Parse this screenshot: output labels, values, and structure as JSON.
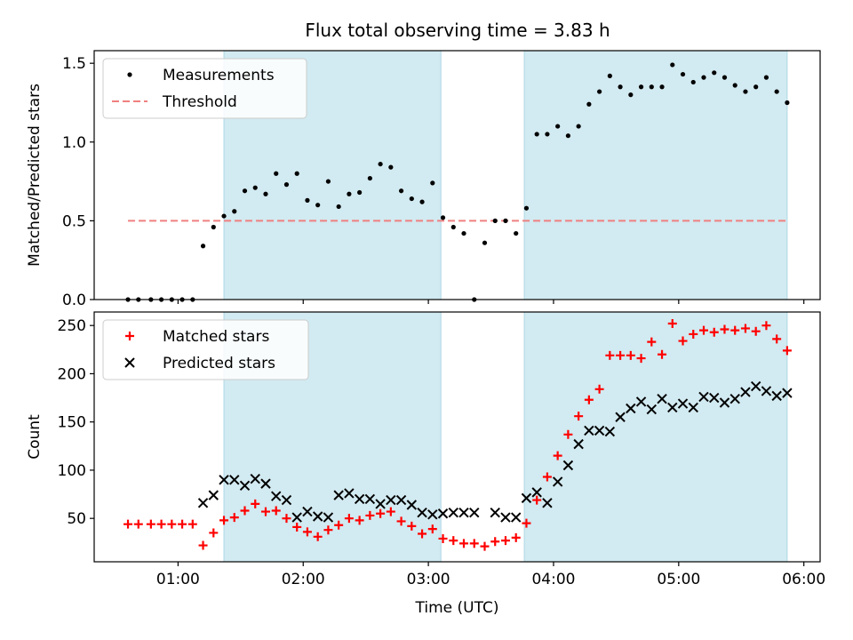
{
  "title": "Flux total observing time = 3.83 h",
  "colors": {
    "band": "#add8e6",
    "measurement": "#000000",
    "threshold": "#f08080",
    "matched": "#ff0000",
    "predicted": "#000000"
  },
  "chart_data": [
    {
      "type": "scatter",
      "panel": "top",
      "xlabel": "",
      "ylabel": "Matched/Predicted stars",
      "ylim": [
        0,
        1.58
      ],
      "xlim_hours": [
        0.33,
        6.13
      ],
      "yticks": [
        0.0,
        0.5,
        1.0,
        1.5
      ],
      "ytick_labels": [
        "0.0",
        "0.5",
        "1.0",
        "1.5"
      ],
      "legend_position": "top-left",
      "legend": [
        "Measurements",
        "Threshold"
      ],
      "threshold": {
        "value": 0.5,
        "x_range": [
          "00:36",
          "05:52"
        ]
      },
      "shaded_intervals": [
        [
          "01:22",
          "03:06"
        ],
        [
          "03:46",
          "05:52"
        ]
      ],
      "series": [
        {
          "name": "Measurements",
          "x": [
            "00:36",
            "00:41",
            "00:47",
            "00:52",
            "00:57",
            "01:02",
            "01:07",
            "01:12",
            "01:17",
            "01:22",
            "01:27",
            "01:32",
            "01:37",
            "01:42",
            "01:47",
            "01:52",
            "01:57",
            "02:02",
            "02:07",
            "02:12",
            "02:17",
            "02:22",
            "02:27",
            "02:32",
            "02:37",
            "02:42",
            "02:47",
            "02:52",
            "02:57",
            "03:02",
            "03:07",
            "03:12",
            "03:17",
            "03:22",
            "03:27",
            "03:32",
            "03:37",
            "03:42",
            "03:47",
            "03:52",
            "03:57",
            "04:02",
            "04:07",
            "04:12",
            "04:17",
            "04:22",
            "04:27",
            "04:32",
            "04:37",
            "04:42",
            "04:47",
            "04:52",
            "04:57",
            "05:02",
            "05:07",
            "05:12",
            "05:17",
            "05:22",
            "05:27",
            "05:32",
            "05:37",
            "05:42",
            "05:47",
            "05:52"
          ],
          "values": [
            0.0,
            0.0,
            0.0,
            0.0,
            0.0,
            0.0,
            0.0,
            0.34,
            0.46,
            0.53,
            0.56,
            0.69,
            0.71,
            0.67,
            0.8,
            0.73,
            0.8,
            0.63,
            0.6,
            0.75,
            0.59,
            0.67,
            0.68,
            0.77,
            0.86,
            0.84,
            0.69,
            0.64,
            0.62,
            0.74,
            0.52,
            0.46,
            0.42,
            0.0,
            0.36,
            0.5,
            0.5,
            0.42,
            0.58,
            1.05,
            1.05,
            1.1,
            1.04,
            1.1,
            1.24,
            1.32,
            1.42,
            1.35,
            1.3,
            1.35,
            1.35,
            1.35,
            1.49,
            1.43,
            1.38,
            1.41,
            1.44,
            1.41,
            1.36,
            1.32,
            1.35,
            1.41,
            1.32,
            1.25
          ]
        }
      ]
    },
    {
      "type": "scatter",
      "panel": "bottom",
      "xlabel": "Time (UTC)",
      "ylabel": "Count",
      "ylim": [
        5,
        264
      ],
      "xlim_hours": [
        0.33,
        6.13
      ],
      "yticks": [
        50,
        100,
        150,
        200,
        250
      ],
      "ytick_labels": [
        "50",
        "100",
        "150",
        "200",
        "250"
      ],
      "xticks": [
        "01:00",
        "02:00",
        "03:00",
        "04:00",
        "05:00",
        "06:00"
      ],
      "legend_position": "top-left",
      "legend": [
        "Matched stars",
        "Predicted stars"
      ],
      "shaded_intervals": [
        [
          "01:22",
          "03:06"
        ],
        [
          "03:46",
          "05:52"
        ]
      ],
      "series": [
        {
          "name": "Matched stars",
          "x": [
            "00:36",
            "00:41",
            "00:47",
            "00:52",
            "00:57",
            "01:02",
            "01:07",
            "01:12",
            "01:17",
            "01:22",
            "01:27",
            "01:32",
            "01:37",
            "01:42",
            "01:47",
            "01:52",
            "01:57",
            "02:02",
            "02:07",
            "02:12",
            "02:17",
            "02:22",
            "02:27",
            "02:32",
            "02:37",
            "02:42",
            "02:47",
            "02:52",
            "02:57",
            "03:02",
            "03:07",
            "03:12",
            "03:17",
            "03:22",
            "03:27",
            "03:32",
            "03:37",
            "03:42",
            "03:47",
            "03:52",
            "03:57",
            "04:02",
            "04:07",
            "04:12",
            "04:17",
            "04:22",
            "04:27",
            "04:32",
            "04:37",
            "04:42",
            "04:47",
            "04:52",
            "04:57",
            "05:02",
            "05:07",
            "05:12",
            "05:17",
            "05:22",
            "05:27",
            "05:32",
            "05:37",
            "05:42",
            "05:47",
            "05:52"
          ],
          "values": [
            44,
            44,
            44,
            44,
            44,
            44,
            44,
            22,
            35,
            48,
            51,
            58,
            65,
            57,
            58,
            50,
            41,
            36,
            31,
            38,
            43,
            50,
            48,
            53,
            55,
            57,
            47,
            42,
            34,
            39,
            29,
            27,
            24,
            24,
            21,
            26,
            27,
            30,
            45,
            69,
            93,
            115,
            137,
            156,
            173,
            184,
            219,
            219,
            219,
            216,
            233,
            220,
            252,
            234,
            241,
            245,
            243,
            246,
            245,
            247,
            244,
            250,
            236,
            224
          ]
        },
        {
          "name": "Predicted stars",
          "x": [
            "01:12",
            "01:17",
            "01:22",
            "01:27",
            "01:32",
            "01:37",
            "01:42",
            "01:47",
            "01:52",
            "01:57",
            "02:02",
            "02:07",
            "02:12",
            "02:17",
            "02:22",
            "02:27",
            "02:32",
            "02:37",
            "02:42",
            "02:47",
            "02:52",
            "02:57",
            "03:02",
            "03:07",
            "03:12",
            "03:17",
            "03:22",
            "03:32",
            "03:37",
            "03:42",
            "03:47",
            "03:52",
            "03:57",
            "04:02",
            "04:07",
            "04:12",
            "04:17",
            "04:22",
            "04:27",
            "04:32",
            "04:37",
            "04:42",
            "04:47",
            "04:52",
            "04:57",
            "05:02",
            "05:07",
            "05:12",
            "05:17",
            "05:22",
            "05:27",
            "05:32",
            "05:37",
            "05:42",
            "05:47",
            "05:52"
          ],
          "values": [
            66,
            74,
            90,
            90,
            84,
            91,
            86,
            73,
            69,
            51,
            57,
            52,
            51,
            74,
            76,
            70,
            70,
            65,
            69,
            69,
            64,
            56,
            54,
            55,
            56,
            56,
            56,
            56,
            51,
            51,
            71,
            77,
            66,
            88,
            105,
            127,
            141,
            141,
            140,
            155,
            164,
            171,
            163,
            174,
            165,
            169,
            165,
            176,
            175,
            170,
            174,
            181,
            187,
            182,
            177,
            180
          ]
        }
      ]
    }
  ]
}
